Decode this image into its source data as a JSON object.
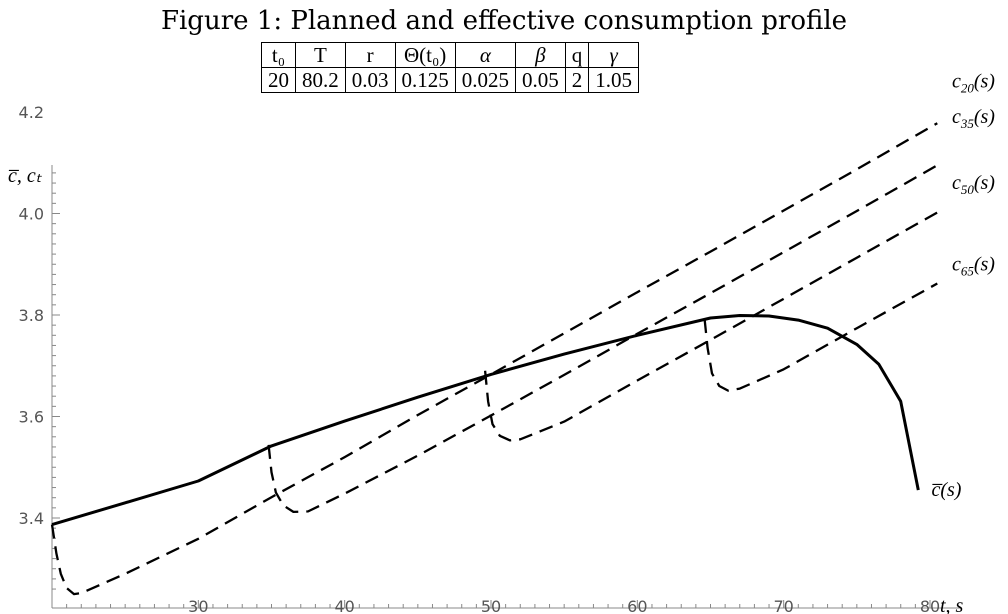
{
  "title": "Figure 1: Planned and effective consumption profile",
  "params_table": {
    "headers": [
      "t₀",
      "T",
      "r",
      "Θ(t₀)",
      "α",
      "β",
      "q",
      "γ"
    ],
    "values": [
      "20",
      "80.2",
      "0.03",
      "0.125",
      "0.025",
      "0.05",
      "2",
      "1.05"
    ]
  },
  "chart_data": {
    "type": "line",
    "title": "Figure 1: Planned and effective consumption profile",
    "xlabel": "t, s",
    "ylabel": "c̅, cₜ",
    "xlim": [
      20,
      81
    ],
    "ylim": [
      3.25,
      4.35
    ],
    "xticks": [
      30,
      40,
      50,
      60,
      70,
      80
    ],
    "yticks": [
      3.4,
      3.6,
      3.8,
      4.0,
      4.2
    ],
    "grid": false,
    "series": [
      {
        "name": "c̅(s)",
        "style": "solid",
        "x": [
          20,
          25,
          30,
          35,
          40,
          45,
          50,
          55,
          60,
          65,
          67,
          69,
          71,
          73,
          75,
          76.5,
          78,
          79.2
        ],
        "y": [
          3.387,
          3.43,
          3.473,
          3.542,
          3.591,
          3.638,
          3.683,
          3.723,
          3.76,
          3.794,
          3.799,
          3.798,
          3.79,
          3.774,
          3.742,
          3.703,
          3.63,
          3.455
        ]
      },
      {
        "name": "c₂₀(s)",
        "style": "dashed",
        "x": [
          20,
          20.3,
          20.6,
          21,
          21.5,
          22,
          25,
          30,
          35,
          40,
          45,
          50,
          55,
          60,
          65,
          70,
          75,
          80.5
        ],
        "y": [
          3.387,
          3.33,
          3.29,
          3.262,
          3.25,
          3.252,
          3.29,
          3.359,
          3.441,
          3.52,
          3.603,
          3.683,
          3.764,
          3.845,
          3.925,
          4.006,
          4.087,
          4.178
        ]
      },
      {
        "name": "c₃₅(s)",
        "style": "dashed",
        "x": [
          34.8,
          35,
          35.3,
          35.8,
          36.5,
          37.5,
          40,
          45,
          50,
          55,
          60,
          65,
          70,
          75,
          80.5
        ],
        "y": [
          3.544,
          3.49,
          3.45,
          3.425,
          3.412,
          3.413,
          3.448,
          3.523,
          3.602,
          3.682,
          3.763,
          3.843,
          3.924,
          4.005,
          4.095
        ]
      },
      {
        "name": "c₅₀(s)",
        "style": "dashed",
        "x": [
          49.6,
          49.8,
          50.1,
          50.6,
          51.3,
          52,
          55,
          60,
          65,
          70,
          75,
          80.5
        ],
        "y": [
          3.69,
          3.63,
          3.585,
          3.562,
          3.553,
          3.555,
          3.59,
          3.671,
          3.751,
          3.832,
          3.913,
          4.002
        ]
      },
      {
        "name": "c₆₅(s)",
        "style": "dashed",
        "x": [
          64.6,
          64.8,
          65.1,
          65.6,
          66.2,
          67,
          70,
          75,
          80.5
        ],
        "y": [
          3.792,
          3.735,
          3.685,
          3.66,
          3.651,
          3.655,
          3.693,
          3.774,
          3.862
        ]
      }
    ],
    "series_labels": [
      {
        "base": "c",
        "sub": "20",
        "tail": "(s)",
        "at": [
          81.5,
          4.26
        ]
      },
      {
        "base": "c",
        "sub": "35",
        "tail": "(s)",
        "at": [
          81.5,
          4.19
        ]
      },
      {
        "base": "c",
        "sub": "50",
        "tail": "(s)",
        "at": [
          81.5,
          4.06
        ]
      },
      {
        "base": "c",
        "sub": "65",
        "tail": "(s)",
        "at": [
          81.5,
          3.9
        ]
      },
      {
        "base": "c̅",
        "sub": "",
        "tail": "(s)",
        "at": [
          80.1,
          3.455
        ]
      }
    ]
  }
}
